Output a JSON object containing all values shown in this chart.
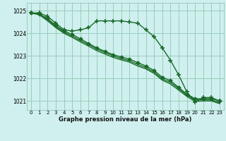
{
  "title": "Graphe pression niveau de la mer (hPa)",
  "background_color": "#cff0ee",
  "grid_color": "#99ccbb",
  "line_color": "#1a6b2a",
  "xlim": [
    -0.5,
    23.5
  ],
  "ylim": [
    1020.6,
    1025.35
  ],
  "yticks": [
    1021,
    1022,
    1023,
    1024,
    1025
  ],
  "xticks": [
    0,
    1,
    2,
    3,
    4,
    5,
    6,
    7,
    8,
    9,
    10,
    11,
    12,
    13,
    14,
    15,
    16,
    17,
    18,
    19,
    20,
    21,
    22,
    23
  ],
  "series": [
    {
      "x": [
        0,
        1,
        2,
        3,
        4,
        5,
        6,
        7,
        8,
        9,
        10,
        11,
        12,
        13,
        14,
        15,
        16,
        17,
        18,
        19,
        20,
        21,
        22,
        23
      ],
      "y": [
        1024.9,
        1024.9,
        1024.75,
        1024.45,
        1024.15,
        1024.1,
        1024.15,
        1024.25,
        1024.55,
        1024.55,
        1024.55,
        1024.55,
        1024.5,
        1024.45,
        1024.15,
        1023.85,
        1023.35,
        1022.8,
        1022.15,
        1021.4,
        1020.95,
        1021.15,
        1021.15,
        1021.0
      ],
      "marker": "+",
      "markersize": 4,
      "linewidth": 1.0,
      "zorder": 4
    },
    {
      "x": [
        0,
        1,
        2,
        3,
        4,
        5,
        6,
        7,
        8,
        9,
        10,
        11,
        12,
        13,
        14,
        15,
        16,
        17,
        18,
        19,
        20,
        21,
        22,
        23
      ],
      "y": [
        1024.9,
        1024.85,
        1024.65,
        1024.35,
        1024.1,
        1023.95,
        1023.75,
        1023.55,
        1023.35,
        1023.2,
        1023.05,
        1022.95,
        1022.85,
        1022.7,
        1022.55,
        1022.35,
        1022.05,
        1021.9,
        1021.6,
        1021.3,
        1021.1,
        1021.1,
        1021.1,
        1021.0
      ],
      "marker": "D",
      "markersize": 2.5,
      "linewidth": 1.0,
      "zorder": 3
    },
    {
      "x": [
        0,
        1,
        2,
        3,
        4,
        5,
        6,
        7,
        8,
        9,
        10,
        11,
        12,
        13,
        14,
        15,
        16,
        17,
        18,
        19,
        20,
        21,
        22,
        23
      ],
      "y": [
        1024.9,
        1024.85,
        1024.6,
        1024.3,
        1024.05,
        1023.88,
        1023.68,
        1023.5,
        1023.3,
        1023.15,
        1023.0,
        1022.88,
        1022.78,
        1022.62,
        1022.48,
        1022.28,
        1021.98,
        1021.82,
        1021.55,
        1021.25,
        1021.05,
        1021.05,
        1021.05,
        1020.92
      ],
      "marker": null,
      "linewidth": 1.0,
      "zorder": 2
    },
    {
      "x": [
        0,
        1,
        2,
        3,
        4,
        5,
        6,
        7,
        8,
        9,
        10,
        11,
        12,
        13,
        14,
        15,
        16,
        17,
        18,
        19,
        20,
        21,
        22,
        23
      ],
      "y": [
        1024.9,
        1024.82,
        1024.55,
        1024.25,
        1024.0,
        1023.82,
        1023.62,
        1023.43,
        1023.23,
        1023.08,
        1022.93,
        1022.82,
        1022.72,
        1022.55,
        1022.42,
        1022.22,
        1021.92,
        1021.75,
        1021.48,
        1021.2,
        1020.98,
        1021.0,
        1021.0,
        1020.88
      ],
      "marker": null,
      "linewidth": 1.0,
      "zorder": 2
    }
  ]
}
